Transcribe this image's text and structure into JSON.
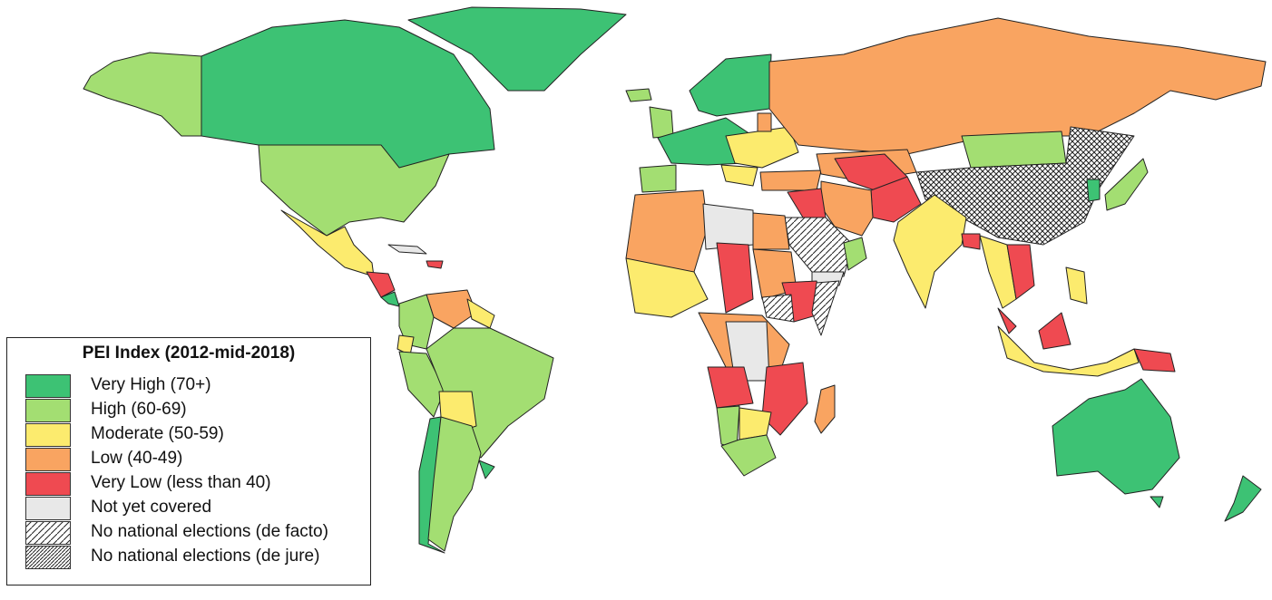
{
  "legend": {
    "title": "PEI Index (2012-mid-2018)",
    "items": [
      {
        "label": "Very High (70+)",
        "color": "#3dc274",
        "pattern": "solid"
      },
      {
        "label": "High (60-69)",
        "color": "#a3de72",
        "pattern": "solid"
      },
      {
        "label": "Moderate (50-59)",
        "color": "#fceb6e",
        "pattern": "solid"
      },
      {
        "label": "Low (40-49)",
        "color": "#f9a461",
        "pattern": "solid"
      },
      {
        "label": "Very Low (less than 40)",
        "color": "#ef4a51",
        "pattern": "solid"
      },
      {
        "label": "Not yet covered",
        "color": "#e8e8e8",
        "pattern": "solid"
      },
      {
        "label": "No national elections (de facto)",
        "color": "#ffffff",
        "pattern": "hatch-wide"
      },
      {
        "label": "No national elections (de jure)",
        "color": "#ffffff",
        "pattern": "hatch-dense"
      }
    ]
  },
  "colors": {
    "very_high": "#3dc274",
    "high": "#a3de72",
    "moderate": "#fceb6e",
    "low": "#f9a461",
    "very_low": "#ef4a51",
    "not_covered": "#e8e8e8"
  }
}
